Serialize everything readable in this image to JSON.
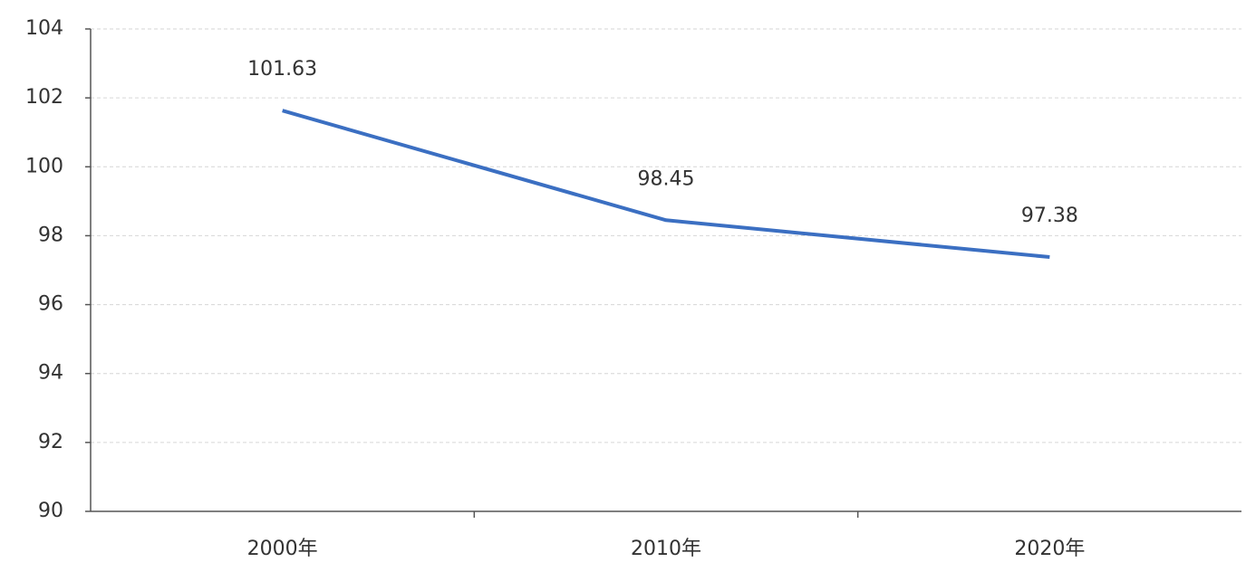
{
  "chart_data": {
    "type": "line",
    "categories": [
      "2000年",
      "2010年",
      "2020年"
    ],
    "values": [
      101.63,
      98.45,
      97.38
    ],
    "color": "#3b6fc2",
    "ylim": [
      90,
      104
    ],
    "yticks": [
      90,
      92,
      94,
      96,
      98,
      100,
      102,
      104
    ],
    "grid": true
  }
}
